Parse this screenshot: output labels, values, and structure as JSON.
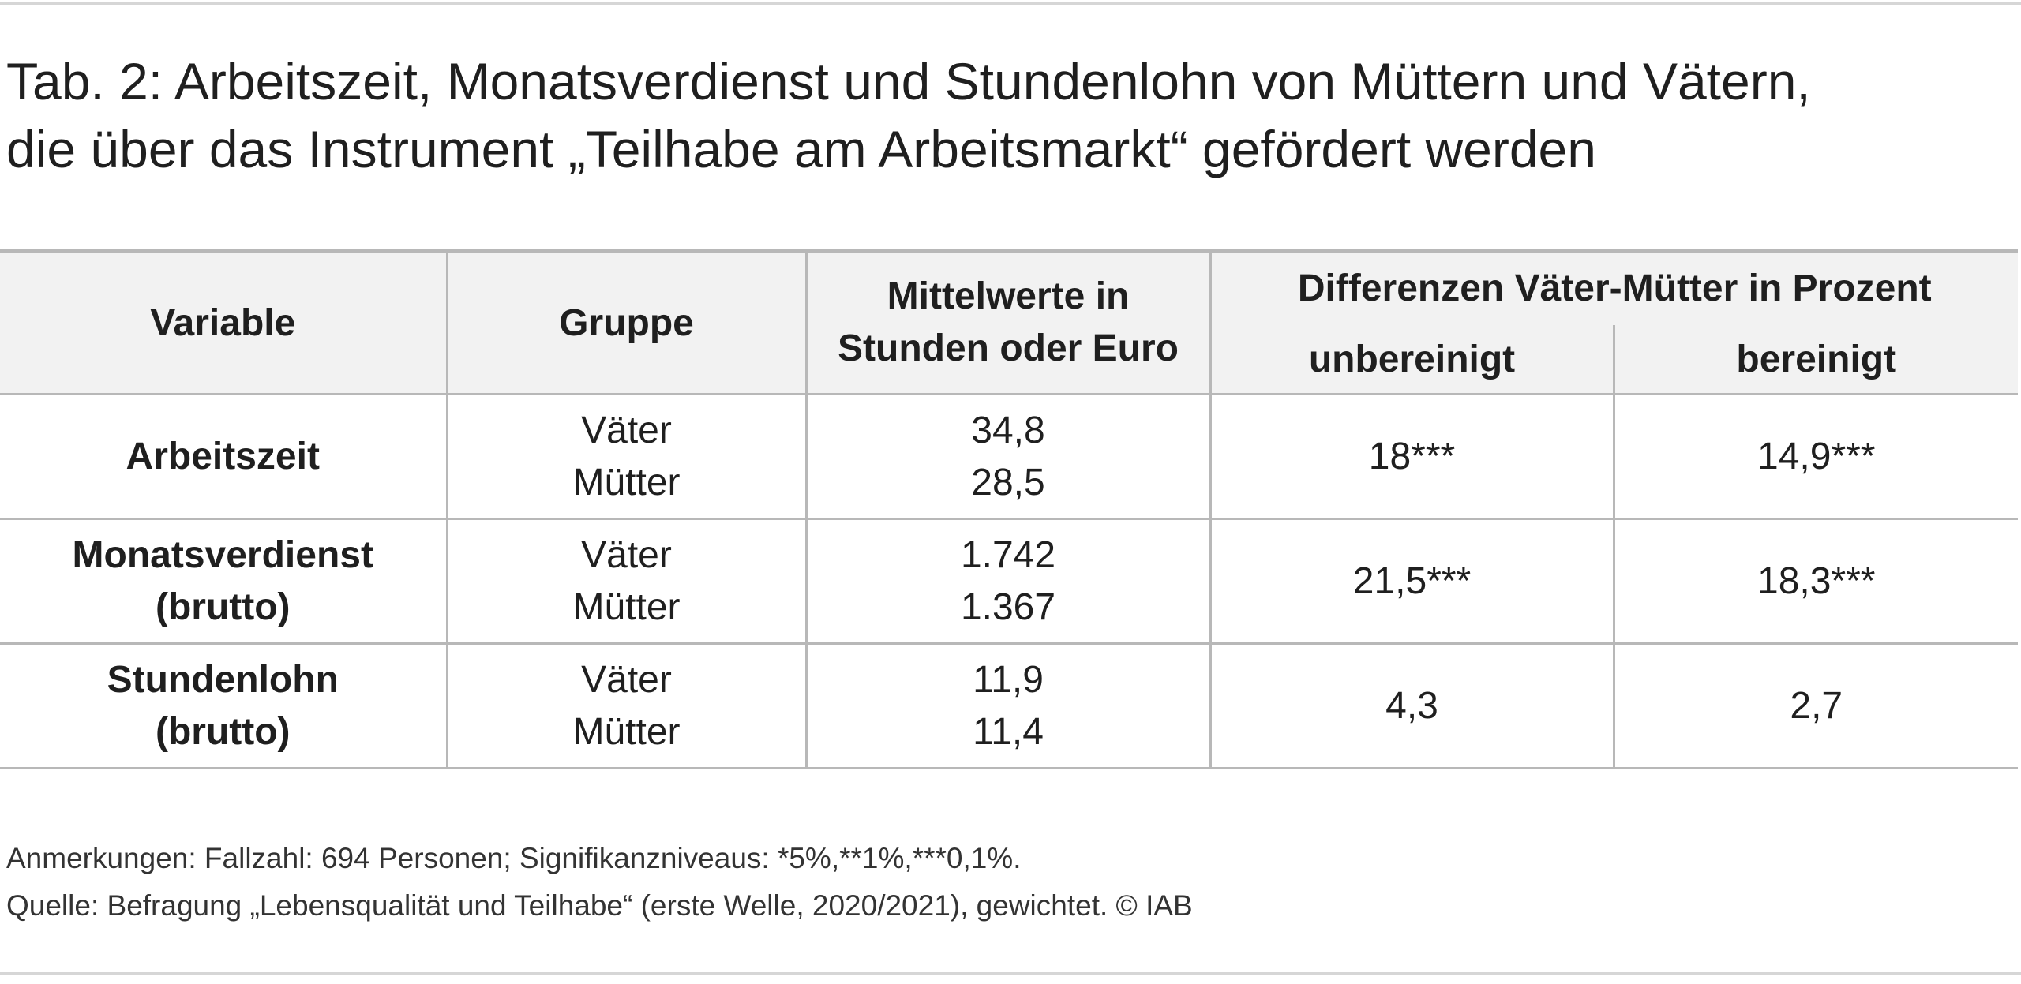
{
  "title": {
    "line1": "Tab. 2: Arbeitszeit, Monatsverdienst und Stundenlohn von Müttern und Vätern,",
    "line2": "die über das Instrument „Teilhabe am Arbeitsmarkt“ gefördert werden"
  },
  "table": {
    "headers": {
      "variable": "Variable",
      "gruppe": "Gruppe",
      "mittelwerte_line1": "Mittelwerte in",
      "mittelwerte_line2": "Stunden oder Euro",
      "differenzen": "Differenzen Väter-Mütter in Prozent",
      "unbereinigt": "unbereinigt",
      "bereinigt": "bereinigt"
    },
    "rows": [
      {
        "variable_line1": "Arbeitszeit",
        "variable_line2": "",
        "group1": "Väter",
        "group2": "Mütter",
        "value1": "34,8",
        "value2": "28,5",
        "unbereinigt": "18***",
        "bereinigt": "14,9***"
      },
      {
        "variable_line1": "Monatsverdienst",
        "variable_line2": "(brutto)",
        "group1": "Väter",
        "group2": "Mütter",
        "value1": "1.742",
        "value2": "1.367",
        "unbereinigt": "21,5***",
        "bereinigt": "18,3***"
      },
      {
        "variable_line1": "Stundenlohn",
        "variable_line2": "(brutto)",
        "group1": "Väter",
        "group2": "Mütter",
        "value1": "11,9",
        "value2": "11,4",
        "unbereinigt": "4,3",
        "bereinigt": "2,7"
      }
    ]
  },
  "notes": {
    "anmerkungen": "Anmerkungen: Fallzahl: 694 Personen; Signifikanzniveaus: *5%,**1%,***0,1%.",
    "quelle": "Quelle: Befragung „Lebensqualität und Teilhabe“ (erste Welle, 2020/2021), gewichtet. © IAB"
  }
}
